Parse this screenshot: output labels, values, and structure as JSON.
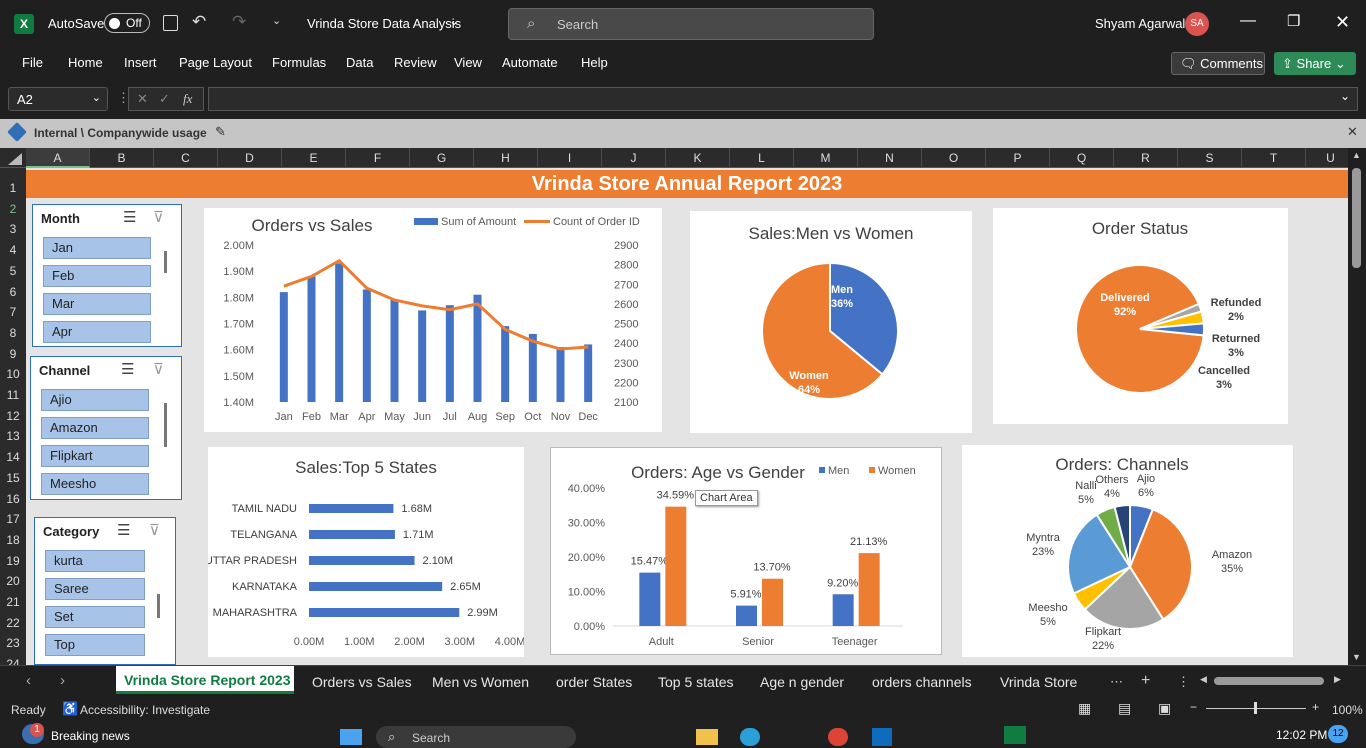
{
  "titlebar": {
    "app_icon": "excel-icon",
    "autosave_label": "AutoSave",
    "autosave_state": "Off",
    "document_title": "Vrinda Store Data Analysis",
    "search_placeholder": "Search",
    "user_name": "Shyam Agarwal",
    "user_initials": "SA"
  },
  "menu": [
    "File",
    "Home",
    "Insert",
    "Page Layout",
    "Formulas",
    "Data",
    "Review",
    "View",
    "Automate",
    "Help"
  ],
  "ribbon_actions": {
    "comments_label": "Comments",
    "share_label": "Share"
  },
  "formula_bar": {
    "name_box": "A2",
    "fx_label": "fx",
    "formula": ""
  },
  "info_bar": {
    "label": "Internal \\ Companywide usage"
  },
  "columns": [
    "A",
    "B",
    "C",
    "D",
    "E",
    "F",
    "G",
    "H",
    "I",
    "J",
    "K",
    "L",
    "M",
    "N",
    "O",
    "P",
    "Q",
    "R",
    "S",
    "T",
    "U"
  ],
  "rows": [
    "1",
    "2",
    "3",
    "4",
    "5",
    "6",
    "7",
    "8",
    "9",
    "10",
    "11",
    "12",
    "13",
    "14",
    "15",
    "16",
    "17",
    "18",
    "19",
    "20",
    "21",
    "22",
    "23",
    "24"
  ],
  "report_title": "Vrinda Store Annual Report 2023",
  "slicers": {
    "month": {
      "title": "Month",
      "items": [
        "Jan",
        "Feb",
        "Mar",
        "Apr"
      ]
    },
    "channel": {
      "title": "Channel",
      "items": [
        "Ajio",
        "Amazon",
        "Flipkart",
        "Meesho"
      ]
    },
    "category": {
      "title": "Category",
      "items": [
        "kurta",
        "Saree",
        "Set",
        "Top"
      ]
    }
  },
  "tooltip": "Chart Area",
  "colors": {
    "blue": "#4472c4",
    "orange": "#ed7d31",
    "grey": "#a5a5a5",
    "gold": "#ffc000",
    "lightblue": "#5b9bd5",
    "green": "#70ad47",
    "navy": "#264478"
  },
  "chart_data": [
    {
      "type": "bar",
      "title": "Orders vs Sales",
      "categories": [
        "Jan",
        "Feb",
        "Mar",
        "Apr",
        "May",
        "Jun",
        "Jul",
        "Aug",
        "Sep",
        "Oct",
        "Nov",
        "Dec"
      ],
      "series": [
        {
          "name": "Sum of Amount",
          "axis": "left",
          "values": [
            1.82,
            1.88,
            1.93,
            1.83,
            1.79,
            1.75,
            1.77,
            1.81,
            1.69,
            1.66,
            1.61,
            1.62
          ]
        },
        {
          "name": "Count of Order ID",
          "axis": "right",
          "type": "line",
          "values": [
            2690,
            2740,
            2820,
            2680,
            2620,
            2590,
            2570,
            2600,
            2470,
            2410,
            2370,
            2380
          ]
        }
      ],
      "y_left_ticks": [
        "2.00M",
        "1.90M",
        "1.80M",
        "1.70M",
        "1.60M",
        "1.50M",
        "1.40M"
      ],
      "ylim_left": [
        1.4,
        2.0
      ],
      "y_right_ticks": [
        "2900",
        "2800",
        "2700",
        "2600",
        "2500",
        "2400",
        "2300",
        "2200",
        "2100"
      ],
      "ylim_right": [
        2100,
        2900
      ]
    },
    {
      "type": "pie",
      "title": "Sales:Men vs Women",
      "labels": [
        "Men",
        "Women"
      ],
      "values": [
        36,
        64
      ],
      "data_labels": [
        "36%",
        "64%"
      ]
    },
    {
      "type": "pie",
      "title": "Order Status",
      "labels": [
        "Delivered",
        "Refunded",
        "Returned",
        "Cancelled"
      ],
      "values": [
        92,
        2,
        3,
        3
      ],
      "data_labels": [
        "92%",
        "2%",
        "3%",
        "3%"
      ]
    },
    {
      "type": "bar",
      "orientation": "horizontal",
      "title": "Sales:Top 5 States",
      "categories": [
        "TAMIL NADU",
        "TELANGANA",
        "UTTAR PRADESH",
        "KARNATAKA",
        "MAHARASHTRA"
      ],
      "values": [
        1.68,
        1.71,
        2.1,
        2.65,
        2.99
      ],
      "data_labels": [
        "1.68M",
        "1.71M",
        "2.10M",
        "2.65M",
        "2.99M"
      ],
      "x_ticks": [
        "0.00M",
        "1.00M",
        "2.00M",
        "3.00M",
        "4.00M"
      ],
      "xlim": [
        0,
        4
      ]
    },
    {
      "type": "bar",
      "title": "Orders: Age vs Gender",
      "categories": [
        "Adult",
        "Senior",
        "Teenager"
      ],
      "series": [
        {
          "name": "Men",
          "values": [
            15.47,
            5.91,
            9.2
          ],
          "data_labels": [
            "15.47%",
            "5.91%",
            "9.20%"
          ]
        },
        {
          "name": "Women",
          "values": [
            34.59,
            13.7,
            21.13
          ],
          "data_labels": [
            "34.59%",
            "13.70%",
            "21.13%"
          ]
        }
      ],
      "y_ticks": [
        "40.00%",
        "30.00%",
        "20.00%",
        "10.00%",
        "0.00%"
      ],
      "ylim": [
        0,
        40
      ]
    },
    {
      "type": "pie",
      "title": "Orders: Channels",
      "labels": [
        "Ajio",
        "Amazon",
        "Flipkart",
        "Meesho",
        "Myntra",
        "Nalli",
        "Others"
      ],
      "values": [
        6,
        35,
        22,
        5,
        23,
        5,
        4
      ],
      "data_labels": [
        "6%",
        "35%",
        "22%",
        "5%",
        "23%",
        "5%",
        "4%"
      ]
    }
  ],
  "tabs": [
    "Vrinda Store Report 2023",
    "Orders vs Sales",
    "Men vs Women",
    "order States",
    "Top 5 states",
    "Age n gender",
    "orders channels",
    "Vrinda Store"
  ],
  "status": {
    "ready": "Ready",
    "accessibility": "Accessibility: Investigate",
    "zoom": "100%"
  },
  "taskbar": {
    "news": "Breaking news",
    "news_badge": "1",
    "search": "Search",
    "time": "12:02 PM",
    "notif": "12"
  }
}
